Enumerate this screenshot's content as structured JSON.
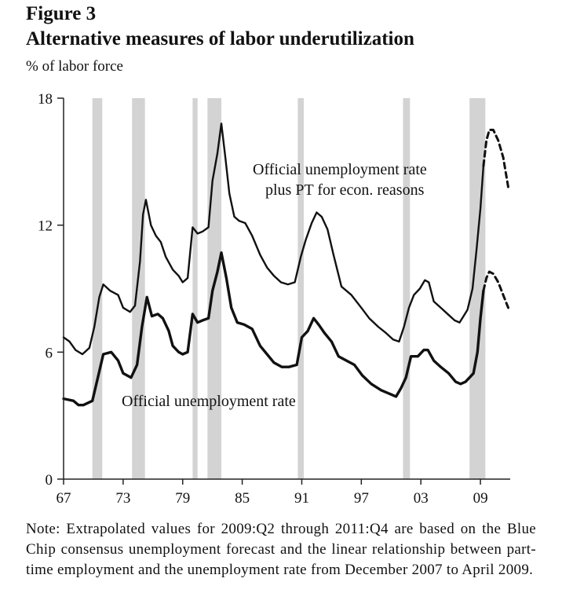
{
  "figure": {
    "label": "Figure 3",
    "title": "Alternative measures of labor underutilization",
    "unit": "% of labor force",
    "note": "Note: Extrapolated values for 2009:Q2 through 2011:Q4 are based on the Blue Chip consensus unemployment forecast and the linear relationship between part-time employment and the unemployment rate from December 2007 to April 2009."
  },
  "chart_data": {
    "type": "line",
    "title": "Alternative measures of labor underutilization",
    "ylabel": "% of labor force",
    "xlim": [
      1967,
      2012
    ],
    "ylim": [
      0,
      18
    ],
    "x_ticks": [
      1967,
      1973,
      1979,
      1985,
      1991,
      1997,
      2003,
      2009
    ],
    "x_tick_labels": [
      "67",
      "73",
      "79",
      "85",
      "91",
      "97",
      "03",
      "09"
    ],
    "y_ticks": [
      0,
      6,
      12,
      18
    ],
    "y_tick_labels": [
      "0",
      "6",
      "12",
      "18"
    ],
    "grid": false,
    "recessions": [
      [
        1969.9,
        1970.9
      ],
      [
        1973.9,
        1975.2
      ],
      [
        1980.0,
        1980.5
      ],
      [
        1981.5,
        1982.9
      ],
      [
        1990.6,
        1991.2
      ],
      [
        2001.2,
        2001.9
      ],
      [
        2007.9,
        2009.5
      ]
    ],
    "annotations": {
      "u3_label": "Official unemployment rate",
      "u6_label_line1": "Official unemployment rate",
      "u6_label_line2": "plus PT for econ. reasons"
    },
    "series": [
      {
        "name": "Official unemployment rate",
        "x": [
          1967.0,
          1968.0,
          1968.5,
          1969.0,
          1969.9,
          1970.5,
          1971.0,
          1971.8,
          1972.5,
          1973.0,
          1973.8,
          1974.4,
          1974.9,
          1975.4,
          1975.9,
          1976.5,
          1977.0,
          1977.6,
          1978.0,
          1978.6,
          1979.0,
          1979.5,
          1980.0,
          1980.5,
          1981.0,
          1981.6,
          1982.0,
          1982.5,
          1982.9,
          1983.4,
          1983.9,
          1984.5,
          1985.2,
          1986.0,
          1986.8,
          1987.5,
          1988.2,
          1989.0,
          1989.7,
          1990.5,
          1991.0,
          1991.6,
          1992.2,
          1992.7,
          1993.3,
          1994.0,
          1994.7,
          1995.5,
          1996.3,
          1997.1,
          1998.0,
          1999.0,
          2000.0,
          2000.5,
          2001.0,
          2001.5,
          2002.0,
          2002.7,
          2003.3,
          2003.7,
          2004.3,
          2005.0,
          2005.8,
          2006.5,
          2007.0,
          2007.5,
          2007.9,
          2008.3,
          2008.7,
          2009.0,
          2009.3
        ],
        "values": [
          3.8,
          3.7,
          3.5,
          3.5,
          3.7,
          4.9,
          5.9,
          6.0,
          5.6,
          5.0,
          4.8,
          5.4,
          7.2,
          8.6,
          7.7,
          7.8,
          7.6,
          7.0,
          6.3,
          6.0,
          5.9,
          6.0,
          7.8,
          7.4,
          7.5,
          7.6,
          8.9,
          9.8,
          10.7,
          9.5,
          8.1,
          7.4,
          7.3,
          7.1,
          6.3,
          5.9,
          5.5,
          5.3,
          5.3,
          5.4,
          6.7,
          7.0,
          7.6,
          7.3,
          6.9,
          6.5,
          5.8,
          5.6,
          5.4,
          4.9,
          4.5,
          4.2,
          4.0,
          3.9,
          4.3,
          4.8,
          5.8,
          5.8,
          6.1,
          6.1,
          5.6,
          5.3,
          5.0,
          4.6,
          4.5,
          4.6,
          4.8,
          5.0,
          6.0,
          7.6,
          8.9
        ]
      },
      {
        "name": "Official unemployment rate plus PT for econ. reasons",
        "x": [
          1967.0,
          1967.6,
          1968.2,
          1968.9,
          1969.6,
          1970.1,
          1970.6,
          1971.0,
          1971.7,
          1972.5,
          1973.0,
          1973.7,
          1974.2,
          1974.7,
          1975.0,
          1975.3,
          1975.8,
          1976.3,
          1976.8,
          1977.3,
          1978.0,
          1978.6,
          1979.0,
          1979.5,
          1980.0,
          1980.5,
          1981.0,
          1981.6,
          1982.0,
          1982.5,
          1982.9,
          1983.3,
          1983.7,
          1984.2,
          1984.7,
          1985.3,
          1986.0,
          1986.8,
          1987.5,
          1988.2,
          1988.9,
          1989.6,
          1990.3,
          1990.9,
          1991.4,
          1992.0,
          1992.5,
          1993.0,
          1993.6,
          1994.2,
          1995.0,
          1996.0,
          1997.0,
          1997.8,
          1998.7,
          1999.5,
          2000.2,
          2000.8,
          2001.3,
          2001.8,
          2002.3,
          2002.9,
          2003.4,
          2003.8,
          2004.3,
          2005.0,
          2005.7,
          2006.4,
          2006.9,
          2007.3,
          2007.7,
          2008.2,
          2008.6,
          2009.0,
          2009.3
        ],
        "values": [
          6.7,
          6.5,
          6.1,
          5.9,
          6.2,
          7.2,
          8.6,
          9.2,
          8.9,
          8.7,
          8.1,
          7.9,
          8.2,
          10.3,
          12.5,
          13.2,
          12.0,
          11.5,
          11.2,
          10.5,
          9.9,
          9.6,
          9.3,
          9.5,
          11.9,
          11.6,
          11.7,
          11.9,
          14.1,
          15.4,
          16.8,
          15.2,
          13.5,
          12.4,
          12.2,
          12.1,
          11.5,
          10.6,
          10.0,
          9.6,
          9.3,
          9.2,
          9.3,
          10.5,
          11.3,
          12.1,
          12.6,
          12.4,
          11.8,
          10.6,
          9.1,
          8.7,
          8.1,
          7.6,
          7.2,
          6.9,
          6.6,
          6.5,
          7.2,
          8.1,
          8.7,
          9.0,
          9.4,
          9.3,
          8.4,
          8.1,
          7.8,
          7.5,
          7.4,
          7.7,
          8.0,
          9.0,
          10.8,
          12.8,
          14.8
        ]
      },
      {
        "name": "Official unemployment rate (extrapolated)",
        "x": [
          2009.3,
          2009.6,
          2009.9,
          2010.3,
          2010.8,
          2011.3,
          2011.8
        ],
        "values": [
          8.9,
          9.5,
          9.8,
          9.7,
          9.3,
          8.7,
          8.1
        ]
      },
      {
        "name": "Official unemployment rate plus PT for econ. reasons (extrapolated)",
        "x": [
          2009.3,
          2009.6,
          2009.9,
          2010.3,
          2010.8,
          2011.3,
          2011.8
        ],
        "values": [
          14.8,
          16.0,
          16.5,
          16.5,
          16.0,
          15.2,
          13.8
        ]
      }
    ],
    "colors": {
      "line": "#111111",
      "recession": "#d3d3d3",
      "axis": "#222222"
    }
  }
}
